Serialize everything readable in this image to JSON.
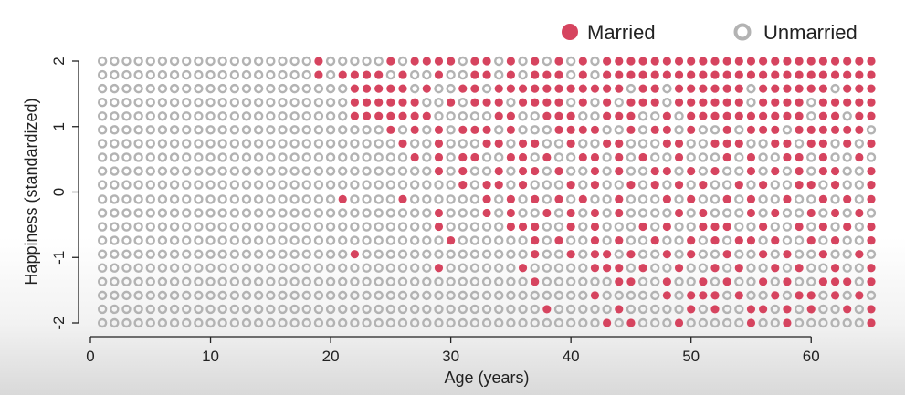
{
  "chart_data": {
    "type": "scatter",
    "title": "",
    "xlabel": "Age (years)",
    "ylabel": "Happiness (standardized)",
    "xlim": [
      0,
      65
    ],
    "ylim": [
      -2,
      2
    ],
    "x_ticks": [
      "0",
      "10",
      "20",
      "30",
      "40",
      "50",
      "60"
    ],
    "y_ticks": [
      "-2",
      "-1",
      "0",
      "1",
      "2"
    ],
    "grid": false,
    "legend_position": "top-right",
    "series": [
      {
        "name": "Married",
        "color": "#d6445f",
        "marker": "filled-circle"
      },
      {
        "name": "Unmarried",
        "color": "#b3b3b3",
        "marker": "ring"
      }
    ],
    "ages": [
      1,
      65
    ],
    "happiness_levels": [
      2.0,
      1.79,
      1.58,
      1.37,
      1.16,
      0.95,
      0.74,
      0.53,
      0.32,
      0.11,
      -0.11,
      -0.32,
      -0.53,
      -0.74,
      -0.95,
      -1.16,
      -1.37,
      -1.58,
      -1.79,
      -2.0
    ],
    "married_start_age_by_row": [
      19,
      19,
      22,
      22,
      22,
      25,
      26,
      27,
      29,
      31,
      33,
      35,
      35,
      37,
      40,
      42,
      45,
      48,
      50,
      55
    ],
    "unmarried_exceptions": [
      [
        20,
        21,
        22,
        23,
        24,
        26,
        31,
        34,
        36,
        38,
        40,
        42
      ],
      [
        20,
        25,
        27,
        28,
        30,
        31,
        34,
        36,
        40,
        42
      ],
      [
        27,
        29,
        30,
        33,
        45,
        48,
        55,
        62
      ],
      [
        28,
        29,
        31,
        35,
        40,
        42,
        44,
        48,
        55,
        60
      ],
      [
        29,
        30,
        31,
        32,
        33,
        36,
        37,
        41,
        42,
        46,
        47,
        49,
        60,
        63
      ],
      [
        26,
        28,
        30,
        34,
        36,
        37,
        38,
        43,
        44,
        46,
        49,
        51,
        52,
        54,
        58,
        65
      ],
      [
        27,
        28,
        30,
        31,
        32,
        35,
        38,
        39,
        41,
        42,
        45,
        46,
        47,
        50,
        51,
        55,
        56,
        59,
        62,
        64
      ],
      [
        28,
        30,
        33,
        34,
        37,
        39,
        40,
        43,
        45,
        47,
        48,
        50,
        51,
        52,
        54,
        56,
        57,
        60,
        62,
        63,
        65
      ],
      [
        30,
        32,
        33,
        35,
        38,
        40,
        41,
        43,
        45,
        46,
        49,
        51,
        53,
        54,
        56,
        58,
        60,
        63,
        64
      ],
      [
        32,
        35,
        37,
        38,
        39,
        41,
        43,
        44,
        46,
        48,
        50,
        52,
        53,
        55,
        57,
        58,
        61,
        63,
        64
      ],
      [
        34,
        36,
        38,
        40,
        42,
        43,
        45,
        46,
        47,
        49,
        51,
        52,
        54,
        56,
        57,
        59,
        60,
        62,
        64
      ],
      [
        36,
        37,
        39,
        41,
        43,
        45,
        46,
        47,
        48,
        50,
        52,
        53,
        54,
        56,
        58,
        59,
        61,
        63,
        65
      ],
      [
        36,
        38,
        39,
        41,
        43,
        44,
        45,
        47,
        49,
        50,
        52,
        54,
        55,
        57,
        58,
        60,
        62,
        64
      ],
      [
        38,
        40,
        41,
        43,
        45,
        46,
        48,
        49,
        51,
        53,
        54,
        56,
        58,
        59,
        61,
        63,
        64
      ],
      [
        41,
        43,
        44,
        46,
        47,
        49,
        51,
        52,
        54,
        55,
        57,
        59,
        60,
        62,
        63,
        65
      ],
      [
        43,
        45,
        47,
        48,
        50,
        51,
        53,
        55,
        56,
        58,
        60,
        61,
        63,
        64
      ],
      [
        46,
        47,
        49,
        50,
        52,
        54,
        55,
        57,
        59,
        60,
        62,
        64
      ],
      [
        49,
        50,
        52,
        53,
        55,
        56,
        58,
        60,
        61,
        63,
        65
      ],
      [
        51,
        53,
        54,
        56,
        57,
        59,
        61,
        62,
        64
      ],
      [
        56,
        57,
        59,
        60,
        61,
        62,
        63,
        64
      ]
    ],
    "extra_married_points": [
      [
        21,
        -0.11
      ],
      [
        26,
        -0.11
      ],
      [
        29,
        -0.32
      ],
      [
        29,
        -0.53
      ],
      [
        30,
        -0.74
      ],
      [
        22,
        -0.95
      ],
      [
        29,
        -1.16
      ],
      [
        36,
        -0.53
      ],
      [
        37,
        -0.95
      ],
      [
        36,
        -1.16
      ],
      [
        37,
        -1.37
      ],
      [
        38,
        -1.79
      ],
      [
        43,
        -0.95
      ],
      [
        45,
        -0.95
      ],
      [
        48,
        -0.95
      ],
      [
        42,
        -1.58
      ],
      [
        44,
        -1.37
      ],
      [
        43,
        -2.0
      ],
      [
        45,
        -2.0
      ],
      [
        49,
        -2.0
      ],
      [
        51,
        -1.37
      ],
      [
        50,
        -1.58
      ],
      [
        52,
        -1.58
      ],
      [
        54,
        -0.74
      ],
      [
        52,
        -0.53
      ],
      [
        56,
        -1.37
      ],
      [
        56,
        -1.79
      ],
      [
        58,
        -2.0
      ],
      [
        60,
        -1.58
      ],
      [
        62,
        -1.37
      ],
      [
        64,
        -0.95
      ],
      [
        65,
        -2.0
      ],
      [
        44,
        -1.79
      ],
      [
        43,
        -1.16
      ],
      [
        33,
        -0.32
      ]
    ]
  }
}
